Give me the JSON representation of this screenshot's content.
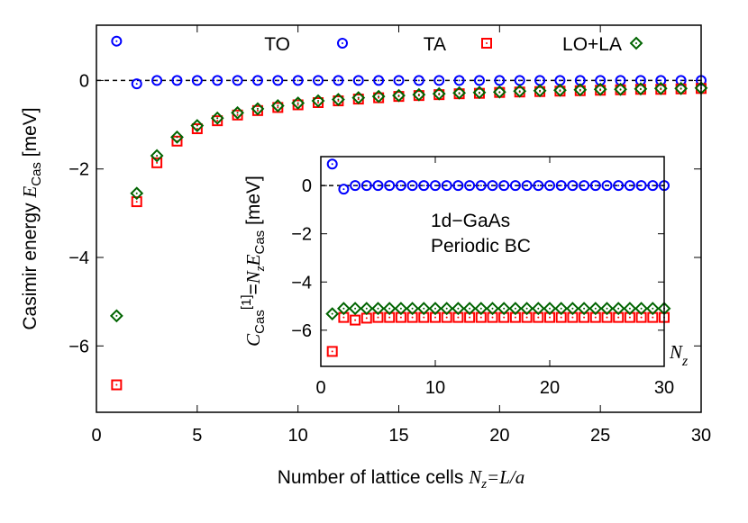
{
  "chart_data": [
    {
      "type": "scatter",
      "xlabel": {
        "prefix": "Number of lattice cells ",
        "var": "N",
        "sub": "z",
        "suffix": "=L/a"
      },
      "ylabel": {
        "prefix": "Casimir energy ",
        "var": "E",
        "sub": "Cas",
        "suffix": " [meV]"
      },
      "xlim": [
        0,
        30
      ],
      "ylim": [
        -7.5,
        1.25
      ],
      "xticks": [
        0,
        5,
        10,
        15,
        20,
        25,
        30
      ],
      "yticks": [
        0,
        -2,
        -4,
        -6
      ],
      "xtick_labels": [
        "0",
        "5",
        "10",
        "15",
        "20",
        "25",
        "30"
      ],
      "ytick_labels": [
        "0",
        "−2",
        "−4",
        "−6"
      ],
      "zero_line": "dashed",
      "legend_placement": "top",
      "x": [
        1,
        2,
        3,
        4,
        5,
        6,
        7,
        8,
        9,
        10,
        11,
        12,
        13,
        14,
        15,
        16,
        17,
        18,
        19,
        20,
        21,
        22,
        23,
        24,
        25,
        26,
        27,
        28,
        29,
        30
      ],
      "series": [
        {
          "name": "TO",
          "marker": "circle",
          "color": "#0000ff",
          "values": [
            0.89,
            -0.075,
            0,
            0,
            0,
            0,
            0,
            0,
            0,
            0,
            0,
            0,
            0,
            0,
            0,
            0,
            0,
            0,
            0,
            0,
            0,
            0,
            0,
            0,
            0,
            0,
            0,
            0,
            0,
            0
          ]
        },
        {
          "name": "TA",
          "marker": "square",
          "color": "#ff0000",
          "values": [
            -6.88,
            -2.74,
            -1.86,
            -1.37,
            -1.09,
            -0.91,
            -0.78,
            -0.68,
            -0.61,
            -0.55,
            -0.5,
            -0.46,
            -0.42,
            -0.39,
            -0.36,
            -0.34,
            -0.32,
            -0.3,
            -0.29,
            -0.27,
            -0.26,
            -0.25,
            -0.24,
            -0.23,
            -0.22,
            -0.21,
            -0.2,
            -0.2,
            -0.19,
            -0.18
          ]
        },
        {
          "name": "LO+LA",
          "marker": "diamond",
          "color": "#006400",
          "values": [
            -5.32,
            -2.55,
            -1.7,
            -1.28,
            -1.02,
            -0.85,
            -0.73,
            -0.64,
            -0.57,
            -0.51,
            -0.46,
            -0.43,
            -0.39,
            -0.36,
            -0.34,
            -0.32,
            -0.3,
            -0.28,
            -0.27,
            -0.26,
            -0.24,
            -0.23,
            -0.22,
            -0.21,
            -0.2,
            -0.2,
            -0.19,
            -0.18,
            -0.18,
            -0.17
          ]
        }
      ]
    },
    {
      "type": "scatter",
      "inset": true,
      "xlabel": {
        "var": "N",
        "sub": "z"
      },
      "ylabel": {
        "var": "C",
        "sub": "Cas",
        "sup": "[1]",
        "mid": "=",
        "var2": "N",
        "sub2": "z",
        "var3": "E",
        "sub3": "Cas",
        "suffix": " [meV]"
      },
      "annotation": [
        "1d−GaAs",
        "Periodic BC"
      ],
      "xlim": [
        0,
        30
      ],
      "ylim": [
        -7.5,
        1.2
      ],
      "xticks": [
        0,
        10,
        20,
        30
      ],
      "yticks": [
        0,
        -2,
        -4,
        -6
      ],
      "xtick_labels": [
        "0",
        "10",
        "20",
        "30"
      ],
      "ytick_labels": [
        "0",
        "−2",
        "−4",
        "−6"
      ],
      "zero_line": "dashed",
      "x": [
        1,
        2,
        3,
        4,
        5,
        6,
        7,
        8,
        9,
        10,
        11,
        12,
        13,
        14,
        15,
        16,
        17,
        18,
        19,
        20,
        21,
        22,
        23,
        24,
        25,
        26,
        27,
        28,
        29,
        30
      ],
      "series": [
        {
          "marker": "circle",
          "color": "#0000ff",
          "values": [
            0.89,
            -0.15,
            0,
            0,
            0,
            0,
            0,
            0,
            0,
            0,
            0,
            0,
            0,
            0,
            0,
            0,
            0,
            0,
            0,
            0,
            0,
            0,
            0,
            0,
            0,
            0,
            0,
            0,
            0,
            0
          ]
        },
        {
          "marker": "square",
          "color": "#ff0000",
          "values": [
            -6.88,
            -5.47,
            -5.58,
            -5.5,
            -5.47,
            -5.47,
            -5.47,
            -5.47,
            -5.47,
            -5.47,
            -5.47,
            -5.47,
            -5.47,
            -5.47,
            -5.47,
            -5.47,
            -5.47,
            -5.47,
            -5.47,
            -5.47,
            -5.47,
            -5.47,
            -5.47,
            -5.47,
            -5.47,
            -5.47,
            -5.47,
            -5.47,
            -5.47,
            -5.47
          ]
        },
        {
          "marker": "diamond",
          "color": "#006400",
          "values": [
            -5.32,
            -5.1,
            -5.1,
            -5.1,
            -5.1,
            -5.1,
            -5.1,
            -5.1,
            -5.1,
            -5.1,
            -5.1,
            -5.1,
            -5.1,
            -5.1,
            -5.1,
            -5.1,
            -5.1,
            -5.1,
            -5.1,
            -5.1,
            -5.1,
            -5.1,
            -5.1,
            -5.1,
            -5.1,
            -5.1,
            -5.1,
            -5.1,
            -5.1,
            -5.1
          ]
        }
      ]
    }
  ]
}
